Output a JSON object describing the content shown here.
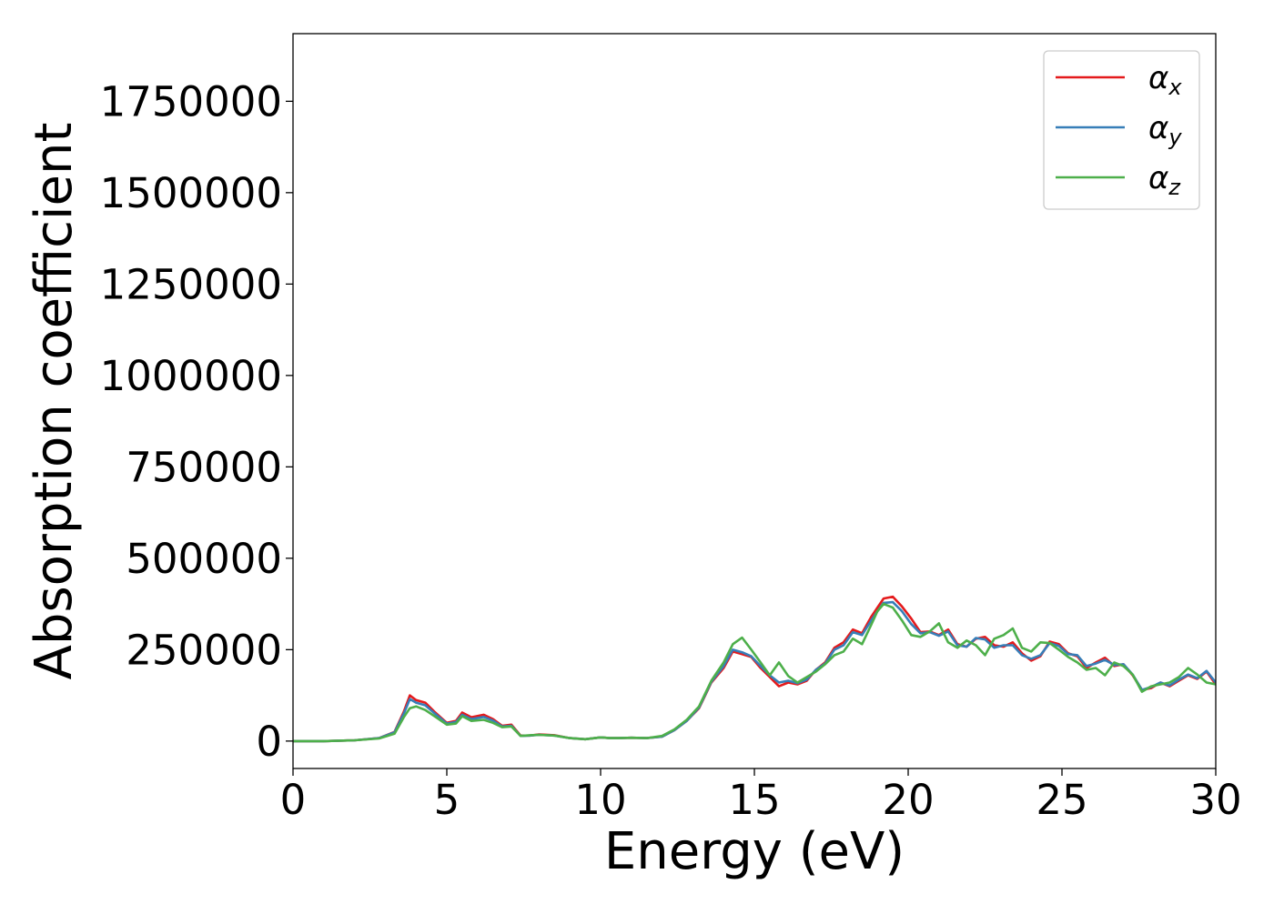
{
  "chart_data": {
    "type": "line",
    "xlabel": "Energy (eV)",
    "ylabel": "Absorption coefficient",
    "xlim": [
      0,
      30
    ],
    "ylim": [
      -75000,
      1935000
    ],
    "xticks": [
      0,
      5,
      10,
      15,
      20,
      25,
      30
    ],
    "yticks": [
      0,
      250000,
      500000,
      750000,
      1000000,
      1250000,
      1500000,
      1750000
    ],
    "xtick_labels": [
      "0",
      "5",
      "10",
      "15",
      "20",
      "25",
      "30"
    ],
    "ytick_labels": [
      "0",
      "250000",
      "500000",
      "750000",
      "1000000",
      "1250000",
      "1500000",
      "1750000"
    ],
    "grid": false,
    "legend_position": "top-right",
    "series": [
      {
        "name": "α_x",
        "name_main": "α",
        "name_sub": "x",
        "color": "#e41a1c",
        "x": [
          0,
          1,
          2,
          2.8,
          3.3,
          3.6,
          3.8,
          4.0,
          4.3,
          4.6,
          5.0,
          5.3,
          5.5,
          5.8,
          6.2,
          6.5,
          6.8,
          7.1,
          7.4,
          7.7,
          8.0,
          8.5,
          9.0,
          9.5,
          10.0,
          10.3,
          10.6,
          11.0,
          11.5,
          12.0,
          12.4,
          12.8,
          13.2,
          13.6,
          14.0,
          14.3,
          14.6,
          14.9,
          15.2,
          15.5,
          15.8,
          16.1,
          16.4,
          16.7,
          17.0,
          17.3,
          17.6,
          17.9,
          18.2,
          18.5,
          18.8,
          19.0,
          19.2,
          19.5,
          19.8,
          20.1,
          20.4,
          20.7,
          21.0,
          21.3,
          21.6,
          21.9,
          22.2,
          22.5,
          22.8,
          23.1,
          23.4,
          23.7,
          24.0,
          24.3,
          24.6,
          24.9,
          25.2,
          25.5,
          25.8,
          26.1,
          26.4,
          26.7,
          27.0,
          27.3,
          27.6,
          27.9,
          28.2,
          28.5,
          28.8,
          29.1,
          29.4,
          29.7,
          30.0
        ],
        "y": [
          0,
          0,
          2000,
          8000,
          25000,
          80000,
          125000,
          112000,
          105000,
          80000,
          50000,
          55000,
          78000,
          65000,
          72000,
          60000,
          42000,
          45000,
          15000,
          15000,
          18000,
          16000,
          8000,
          5000,
          10000,
          8000,
          8000,
          9000,
          8000,
          12000,
          30000,
          55000,
          90000,
          160000,
          200000,
          245000,
          238000,
          230000,
          200000,
          175000,
          150000,
          160000,
          155000,
          165000,
          195000,
          215000,
          255000,
          270000,
          305000,
          295000,
          340000,
          365000,
          390000,
          395000,
          368000,
          335000,
          298000,
          300000,
          290000,
          305000,
          265000,
          258000,
          280000,
          285000,
          262000,
          258000,
          270000,
          240000,
          220000,
          232000,
          272000,
          265000,
          240000,
          232000,
          200000,
          215000,
          228000,
          205000,
          210000,
          180000,
          140000,
          145000,
          160000,
          150000,
          165000,
          180000,
          170000,
          190000,
          155000
        ]
      },
      {
        "name": "α_y",
        "name_main": "α",
        "name_sub": "y",
        "color": "#377eb8",
        "x": [
          0,
          1,
          2,
          2.8,
          3.3,
          3.6,
          3.8,
          4.0,
          4.3,
          4.6,
          5.0,
          5.3,
          5.5,
          5.8,
          6.2,
          6.5,
          6.8,
          7.1,
          7.4,
          7.7,
          8.0,
          8.5,
          9.0,
          9.5,
          10.0,
          10.3,
          10.6,
          11.0,
          11.5,
          12.0,
          12.4,
          12.8,
          13.2,
          13.6,
          14.0,
          14.3,
          14.6,
          14.9,
          15.2,
          15.5,
          15.8,
          16.1,
          16.4,
          16.7,
          17.0,
          17.3,
          17.6,
          17.9,
          18.2,
          18.5,
          18.8,
          19.0,
          19.2,
          19.5,
          19.8,
          20.1,
          20.4,
          20.7,
          21.0,
          21.3,
          21.6,
          21.9,
          22.2,
          22.5,
          22.8,
          23.1,
          23.4,
          23.7,
          24.0,
          24.3,
          24.6,
          24.9,
          25.2,
          25.5,
          25.8,
          26.1,
          26.4,
          26.7,
          27.0,
          27.3,
          27.6,
          27.9,
          28.2,
          28.5,
          28.8,
          29.1,
          29.4,
          29.7,
          30.0
        ],
        "y": [
          0,
          0,
          2000,
          8000,
          24000,
          75000,
          115000,
          105000,
          98000,
          76000,
          48000,
          52000,
          72000,
          60000,
          66000,
          56000,
          40000,
          42000,
          14000,
          15000,
          17000,
          15000,
          8000,
          5000,
          10000,
          8000,
          8000,
          9000,
          8000,
          12000,
          30000,
          55000,
          92000,
          162000,
          205000,
          250000,
          243000,
          232000,
          205000,
          180000,
          160000,
          165000,
          158000,
          168000,
          195000,
          212000,
          250000,
          262000,
          298000,
          290000,
          330000,
          355000,
          378000,
          380000,
          355000,
          320000,
          295000,
          298000,
          288000,
          300000,
          262000,
          258000,
          282000,
          278000,
          255000,
          262000,
          262000,
          235000,
          225000,
          235000,
          268000,
          260000,
          238000,
          235000,
          205000,
          212000,
          222000,
          208000,
          210000,
          182000,
          140000,
          148000,
          160000,
          152000,
          168000,
          182000,
          172000,
          192000,
          160000
        ]
      },
      {
        "name": "α_z",
        "name_main": "α",
        "name_sub": "z",
        "color": "#4daf4a",
        "x": [
          0,
          1,
          2,
          2.8,
          3.3,
          3.6,
          3.8,
          4.0,
          4.3,
          4.6,
          5.0,
          5.3,
          5.5,
          5.8,
          6.2,
          6.5,
          6.8,
          7.1,
          7.4,
          7.7,
          8.0,
          8.5,
          9.0,
          9.5,
          10.0,
          10.3,
          10.6,
          11.0,
          11.5,
          12.0,
          12.4,
          12.8,
          13.2,
          13.6,
          14.0,
          14.3,
          14.6,
          14.9,
          15.2,
          15.5,
          15.8,
          16.1,
          16.4,
          16.7,
          17.0,
          17.3,
          17.6,
          17.9,
          18.2,
          18.5,
          18.8,
          19.0,
          19.2,
          19.5,
          19.8,
          20.1,
          20.4,
          20.7,
          21.0,
          21.3,
          21.6,
          21.9,
          22.2,
          22.5,
          22.8,
          23.1,
          23.4,
          23.7,
          24.0,
          24.3,
          24.6,
          24.9,
          25.2,
          25.5,
          25.8,
          26.1,
          26.4,
          26.7,
          27.0,
          27.3,
          27.6,
          27.9,
          28.2,
          28.5,
          28.8,
          29.1,
          29.4,
          29.7,
          30.0
        ],
        "y": [
          0,
          0,
          2000,
          7000,
          20000,
          65000,
          90000,
          95000,
          85000,
          68000,
          45000,
          48000,
          68000,
          55000,
          58000,
          50000,
          38000,
          40000,
          14000,
          16000,
          17000,
          15000,
          8000,
          5000,
          10000,
          8000,
          8000,
          9000,
          8000,
          14000,
          32000,
          58000,
          95000,
          165000,
          215000,
          265000,
          283000,
          250000,
          215000,
          180000,
          215000,
          178000,
          160000,
          175000,
          190000,
          210000,
          235000,
          245000,
          280000,
          265000,
          318000,
          355000,
          375000,
          365000,
          330000,
          290000,
          285000,
          300000,
          322000,
          270000,
          255000,
          275000,
          262000,
          235000,
          280000,
          290000,
          308000,
          255000,
          245000,
          270000,
          268000,
          250000,
          230000,
          215000,
          195000,
          200000,
          180000,
          215000,
          205000,
          182000,
          135000,
          150000,
          155000,
          160000,
          175000,
          200000,
          182000,
          160000,
          155000
        ]
      }
    ]
  }
}
